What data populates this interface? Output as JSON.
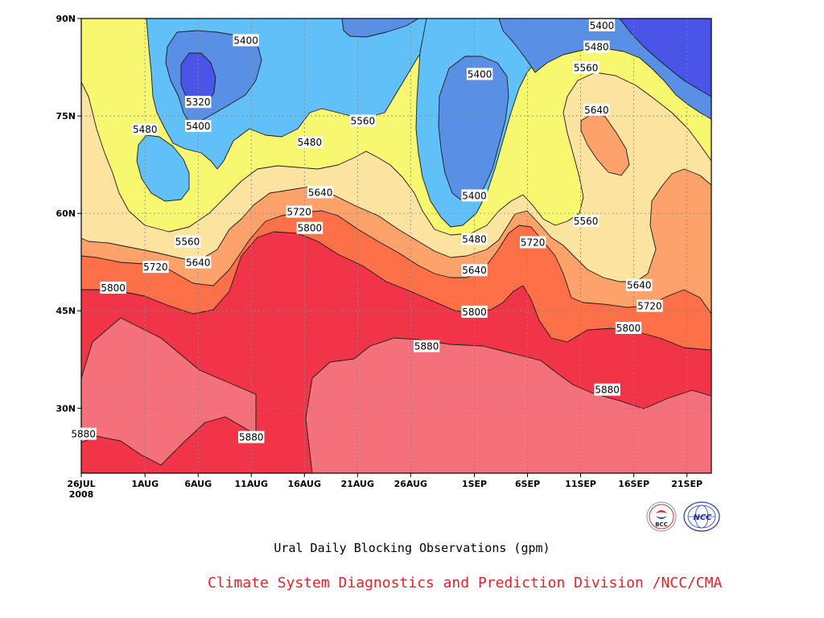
{
  "chart_data": {
    "type": "contour",
    "title": "Ural Daily Blocking Observations (gpm)",
    "x_range": [
      "2008-07-26",
      "2008-09-24"
    ],
    "y_range": [
      20,
      90
    ],
    "x_ticks": [
      {
        "label": "26JUL",
        "sublabel": "2008",
        "day": 0
      },
      {
        "label": "1AUG",
        "day": 6
      },
      {
        "label": "6AUG",
        "day": 11
      },
      {
        "label": "11AUG",
        "day": 16
      },
      {
        "label": "16AUG",
        "day": 21
      },
      {
        "label": "21AUG",
        "day": 26
      },
      {
        "label": "26AUG",
        "day": 31
      },
      {
        "label": "1SEP",
        "day": 37
      },
      {
        "label": "6SEP",
        "day": 42
      },
      {
        "label": "11SEP",
        "day": 47
      },
      {
        "label": "16SEP",
        "day": 52
      },
      {
        "label": "21SEP",
        "day": 57
      }
    ],
    "y_ticks": [
      {
        "label": "30N",
        "lat": 30
      },
      {
        "label": "45N",
        "lat": 45
      },
      {
        "label": "60N",
        "lat": 60
      },
      {
        "label": "75N",
        "lat": 75
      },
      {
        "label": "90N",
        "lat": 90
      }
    ],
    "contour_levels": [
      5320,
      5400,
      5480,
      5560,
      5640,
      5720,
      5800,
      5880
    ],
    "fill_colors": {
      "lt5320": "#4a55e8",
      "5320_5400": "#5a8fe6",
      "5400_5480": "#62c0f8",
      "5480_5560": "#f8f870",
      "5560_5640": "#fde3a0",
      "5640_5720": "#fca26a",
      "5720_5800": "#fd7048",
      "5800_5880": "#f4707a",
      "ge5880": "#f23448"
    },
    "contour_line_labels": [
      {
        "value": "5880",
        "day": 0.2,
        "lat": 26.0
      },
      {
        "value": "5880",
        "day": 16.0,
        "lat": 25.5
      },
      {
        "value": "5880",
        "day": 32.5,
        "lat": 39.5
      },
      {
        "value": "5880",
        "day": 49.5,
        "lat": 32.8
      },
      {
        "value": "5800",
        "day": 3.0,
        "lat": 48.5
      },
      {
        "value": "5800",
        "day": 21.5,
        "lat": 57.7
      },
      {
        "value": "5800",
        "day": 37.0,
        "lat": 44.8
      },
      {
        "value": "5800",
        "day": 51.5,
        "lat": 42.3
      },
      {
        "value": "5720",
        "day": 7.0,
        "lat": 51.7
      },
      {
        "value": "5720",
        "day": 20.5,
        "lat": 60.2
      },
      {
        "value": "5720",
        "day": 42.5,
        "lat": 55.5
      },
      {
        "value": "5720",
        "day": 53.5,
        "lat": 45.7
      },
      {
        "value": "5640",
        "day": 11.0,
        "lat": 52.4
      },
      {
        "value": "5640",
        "day": 22.5,
        "lat": 63.2
      },
      {
        "value": "5640",
        "day": 37.0,
        "lat": 51.2
      },
      {
        "value": "5640",
        "day": 52.5,
        "lat": 48.9
      },
      {
        "value": "5640",
        "day": 48.5,
        "lat": 75.9
      },
      {
        "value": "5560",
        "day": 10.0,
        "lat": 55.6
      },
      {
        "value": "5560",
        "day": 26.5,
        "lat": 74.2
      },
      {
        "value": "5560",
        "day": 47.5,
        "lat": 58.8
      },
      {
        "value": "5560",
        "day": 47.5,
        "lat": 82.4
      },
      {
        "value": "5480",
        "day": 6.0,
        "lat": 72.9
      },
      {
        "value": "5480",
        "day": 21.5,
        "lat": 70.9
      },
      {
        "value": "5480",
        "day": 37.0,
        "lat": 56.0
      },
      {
        "value": "5480",
        "day": 48.5,
        "lat": 85.6
      },
      {
        "value": "5400",
        "day": 15.5,
        "lat": 86.6
      },
      {
        "value": "5400",
        "day": 11.0,
        "lat": 73.4
      },
      {
        "value": "5400",
        "day": 37.5,
        "lat": 81.4
      },
      {
        "value": "5400",
        "day": 37.0,
        "lat": 62.7
      },
      {
        "value": "5400",
        "day": 49.0,
        "lat": 88.9
      },
      {
        "value": "5320",
        "day": 11.0,
        "lat": 77.1
      }
    ]
  },
  "footer": {
    "text": "Climate System Diagnostics and Prediction Division /NCC/CMA",
    "color": "#e8202a"
  },
  "logos": {
    "left": {
      "icon": "bcc-logo",
      "text": "BCC"
    },
    "right": {
      "icon": "ncc-logo",
      "text": "NCC"
    }
  }
}
